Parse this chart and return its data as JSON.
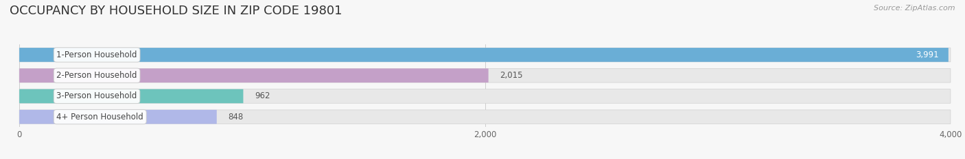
{
  "title": "OCCUPANCY BY HOUSEHOLD SIZE IN ZIP CODE 19801",
  "source": "Source: ZipAtlas.com",
  "categories": [
    "1-Person Household",
    "2-Person Household",
    "3-Person Household",
    "4+ Person Household"
  ],
  "values": [
    3991,
    2015,
    962,
    848
  ],
  "bar_colors": [
    "#6aaed6",
    "#c4a0c8",
    "#6dc4bc",
    "#b0b8e8"
  ],
  "value_inside": [
    true,
    false,
    false,
    false
  ],
  "value_colors_inside": "#ffffff",
  "value_colors_outside": "#555555",
  "background_color": "#f7f7f7",
  "bar_bg_color": "#e8e8e8",
  "xlim_max": 4000,
  "xticks": [
    0,
    2000,
    4000
  ],
  "title_fontsize": 13,
  "label_fontsize": 8.5,
  "value_fontsize": 8.5,
  "axis_fontsize": 8.5,
  "bar_height": 0.68,
  "label_box_color": "#ffffff",
  "label_text_color": "#444444",
  "title_color": "#333333",
  "source_color": "#999999",
  "grid_color": "#cccccc"
}
